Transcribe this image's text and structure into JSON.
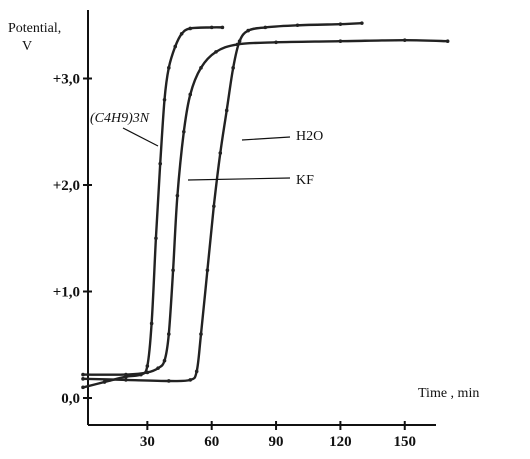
{
  "chart_data": {
    "type": "line",
    "title": "",
    "ylabel": "Potential, V",
    "ylabel_line1": "Potential,",
    "ylabel_line2": "V",
    "xlabel": "Time , min",
    "xlim": [
      0,
      175
    ],
    "ylim": [
      -0.2,
      3.6
    ],
    "x_ticks": [
      30,
      60,
      90,
      120,
      150
    ],
    "x_tick_labels": [
      "30",
      "60",
      "90",
      "120",
      "150"
    ],
    "y_ticks": [
      0.0,
      1.0,
      2.0,
      3.0
    ],
    "y_tick_labels": [
      "0,0",
      "+1,0",
      "+2,0",
      "+3,0"
    ],
    "grid": false,
    "legend": "none",
    "series": [
      {
        "name": "(C4H9)3N",
        "color": "#222222",
        "points": [
          [
            0,
            0.1
          ],
          [
            10,
            0.15
          ],
          [
            20,
            0.2
          ],
          [
            27,
            0.22
          ],
          [
            30,
            0.3
          ],
          [
            32,
            0.7
          ],
          [
            34,
            1.5
          ],
          [
            36,
            2.2
          ],
          [
            38,
            2.8
          ],
          [
            40,
            3.1
          ],
          [
            43,
            3.3
          ],
          [
            46,
            3.42
          ],
          [
            50,
            3.47
          ],
          [
            60,
            3.48
          ],
          [
            65,
            3.48
          ]
        ]
      },
      {
        "name": "KF",
        "color": "#222222",
        "points": [
          [
            0,
            0.22
          ],
          [
            20,
            0.22
          ],
          [
            30,
            0.24
          ],
          [
            35,
            0.28
          ],
          [
            38,
            0.35
          ],
          [
            40,
            0.6
          ],
          [
            42,
            1.2
          ],
          [
            44,
            1.9
          ],
          [
            47,
            2.5
          ],
          [
            50,
            2.85
          ],
          [
            55,
            3.1
          ],
          [
            62,
            3.25
          ],
          [
            72,
            3.32
          ],
          [
            90,
            3.34
          ],
          [
            120,
            3.35
          ],
          [
            150,
            3.36
          ],
          [
            170,
            3.35
          ]
        ]
      },
      {
        "name": "H2O",
        "color": "#222222",
        "points": [
          [
            0,
            0.18
          ],
          [
            20,
            0.17
          ],
          [
            40,
            0.16
          ],
          [
            50,
            0.17
          ],
          [
            53,
            0.25
          ],
          [
            55,
            0.6
          ],
          [
            58,
            1.2
          ],
          [
            61,
            1.8
          ],
          [
            64,
            2.3
          ],
          [
            67,
            2.7
          ],
          [
            70,
            3.1
          ],
          [
            73,
            3.35
          ],
          [
            77,
            3.45
          ],
          [
            85,
            3.48
          ],
          [
            100,
            3.5
          ],
          [
            120,
            3.51
          ],
          [
            130,
            3.52
          ]
        ]
      }
    ],
    "annotations": [
      {
        "text": "(C4H9)3N",
        "series": "(C4H9)3N"
      },
      {
        "text": "H2O",
        "series": "H2O"
      },
      {
        "text": "KF",
        "series": "KF"
      }
    ]
  }
}
